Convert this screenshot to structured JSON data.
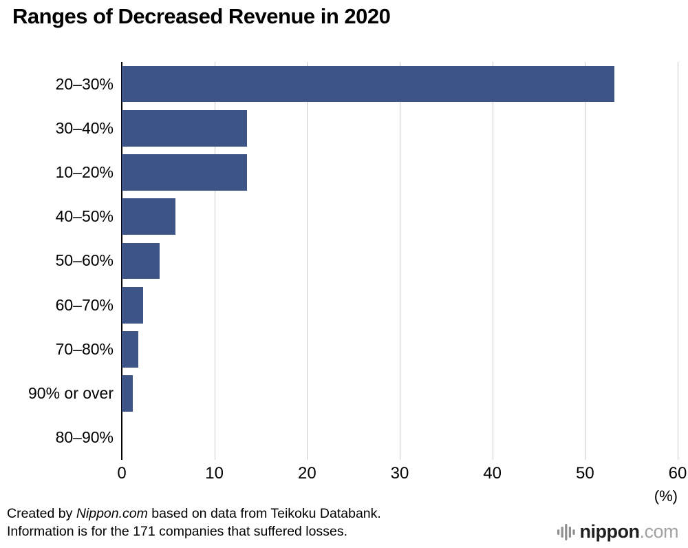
{
  "title": "Ranges of Decreased Revenue in 2020",
  "colors": {
    "bar": "#3c5487",
    "grid": "#c9c9c9",
    "axis": "#000000"
  },
  "chart_data": {
    "type": "bar",
    "orientation": "horizontal",
    "title": "Ranges of Decreased Revenue in 2020",
    "categories": [
      "20–30%",
      "30–40%",
      "10–20%",
      "40–50%",
      "50–60%",
      "60–70%",
      "70–80%",
      "90% or over",
      "80–90%"
    ],
    "values": [
      53.2,
      13.5,
      13.5,
      5.8,
      4.1,
      2.3,
      1.8,
      1.2,
      0
    ],
    "xlim": [
      0,
      60
    ],
    "xticks": [
      0,
      10,
      20,
      30,
      40,
      50,
      60
    ],
    "x_unit": "(%)",
    "grid": true,
    "legend": false
  },
  "footer": {
    "line1_prefix": "Created by ",
    "line1_brand": "Nippon.com",
    "line1_suffix": " based on data from Teikoku Databank.",
    "line2": "Information is for the 171 companies that suffered losses."
  },
  "logo": {
    "icon": "soundwave-bars-icon",
    "name": "nippon",
    "suffix": ".com"
  }
}
